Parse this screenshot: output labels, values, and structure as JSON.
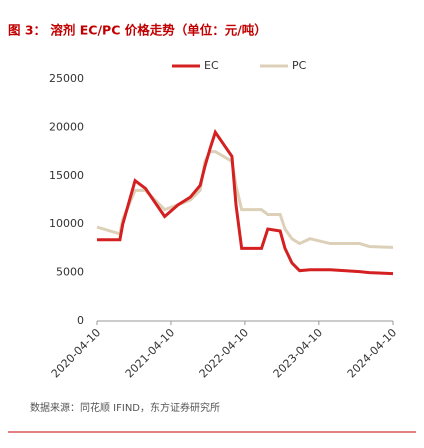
{
  "chart_data": {
    "type": "line",
    "title": "图 3： 溶剂 EC/PC 价格走势（单位：元/吨）",
    "source": "数据来源：同花顺 IFIND，东方证券研究所",
    "x": [
      "2020-04-10",
      "2020-08-01",
      "2020-08-15",
      "2020-10-15",
      "2020-12-05",
      "2021-03-10",
      "2021-05-15",
      "2021-07-15",
      "2021-09-01",
      "2021-09-25",
      "2021-10-20",
      "2021-11-15",
      "2022-02-05",
      "2022-02-25",
      "2022-03-25",
      "2022-07-01",
      "2022-08-01",
      "2022-10-01",
      "2022-10-25",
      "2022-11-28",
      "2023-01-05",
      "2023-02-25",
      "2023-06-05",
      "2023-10-28",
      "2023-12-15",
      "2024-04-10"
    ],
    "series": [
      {
        "name": "EC",
        "color": "#d42020",
        "values": [
          8400,
          8400,
          10000,
          14500,
          13700,
          10800,
          12000,
          12800,
          14000,
          16000,
          17800,
          19500,
          17000,
          12000,
          7500,
          7500,
          9500,
          9300,
          7500,
          6000,
          5200,
          5300,
          5300,
          5100,
          5000,
          4900
        ]
      },
      {
        "name": "PC",
        "color": "#ddd0b8",
        "values": [
          9700,
          9000,
          10500,
          13500,
          13500,
          11500,
          12000,
          12500,
          13500,
          16500,
          17500,
          17500,
          16500,
          14000,
          11500,
          11500,
          11000,
          11000,
          9500,
          8500,
          8000,
          8500,
          8000,
          8000,
          7700,
          7600
        ]
      }
    ],
    "xlim": [
      "2020-04-10",
      "2024-04-10"
    ],
    "xticks": [
      "2020-04-10",
      "2021-04-10",
      "2022-04-10",
      "2023-04-10",
      "2024-04-10"
    ],
    "ylim": [
      0,
      25000
    ],
    "yticks": [
      0,
      5000,
      10000,
      15000,
      20000,
      25000
    ],
    "legend": "top"
  }
}
